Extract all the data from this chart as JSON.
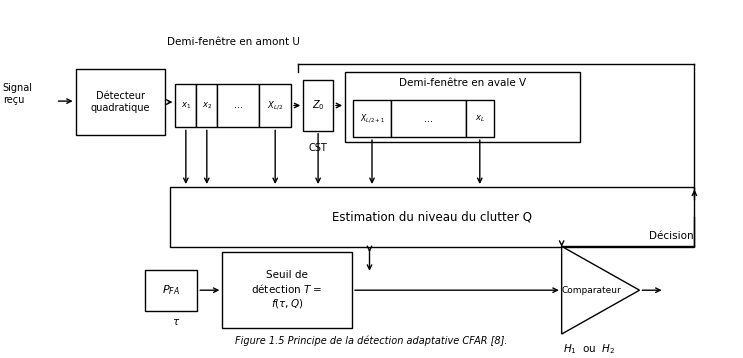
{
  "title": "Figure 1.5 Principe de la détection adaptative CFAR [8].",
  "bg_color": "#ffffff",
  "line_color": "#000000",
  "text_color": "#000000",
  "fig_width": 7.43,
  "fig_height": 3.58,
  "dpi": 100,
  "signal_text": "Signal\nreçu",
  "detector_text": "Détecteur\nquadratique",
  "window_u_label": "Demi-fenêtre en amont U",
  "window_v_label": "Demi-fenêtre en avale V",
  "estimation_text": "Estimation du niveau du clutter Q",
  "pfa_text": "$P_{FA}$",
  "threshold_text": "Seuil de\ndétection $T$ =\n$f(\\tau,Q)$",
  "comparator_text": "Comparateur",
  "decision_text": "Décision",
  "h1h2_text": "$H_1$  ou  $H_2$",
  "cst_text": "CST",
  "tau_text": "$\\tau$",
  "z0_text": "$Z_0$",
  "x1_text": "$x_1$",
  "x2_text": "$x_2$",
  "dots_text": "...",
  "xl2_text": "$X_{L/2}$",
  "xl2p1_text": "$X_{L/2+1}$",
  "dots2_text": "...",
  "xl_text": "$x_L$"
}
